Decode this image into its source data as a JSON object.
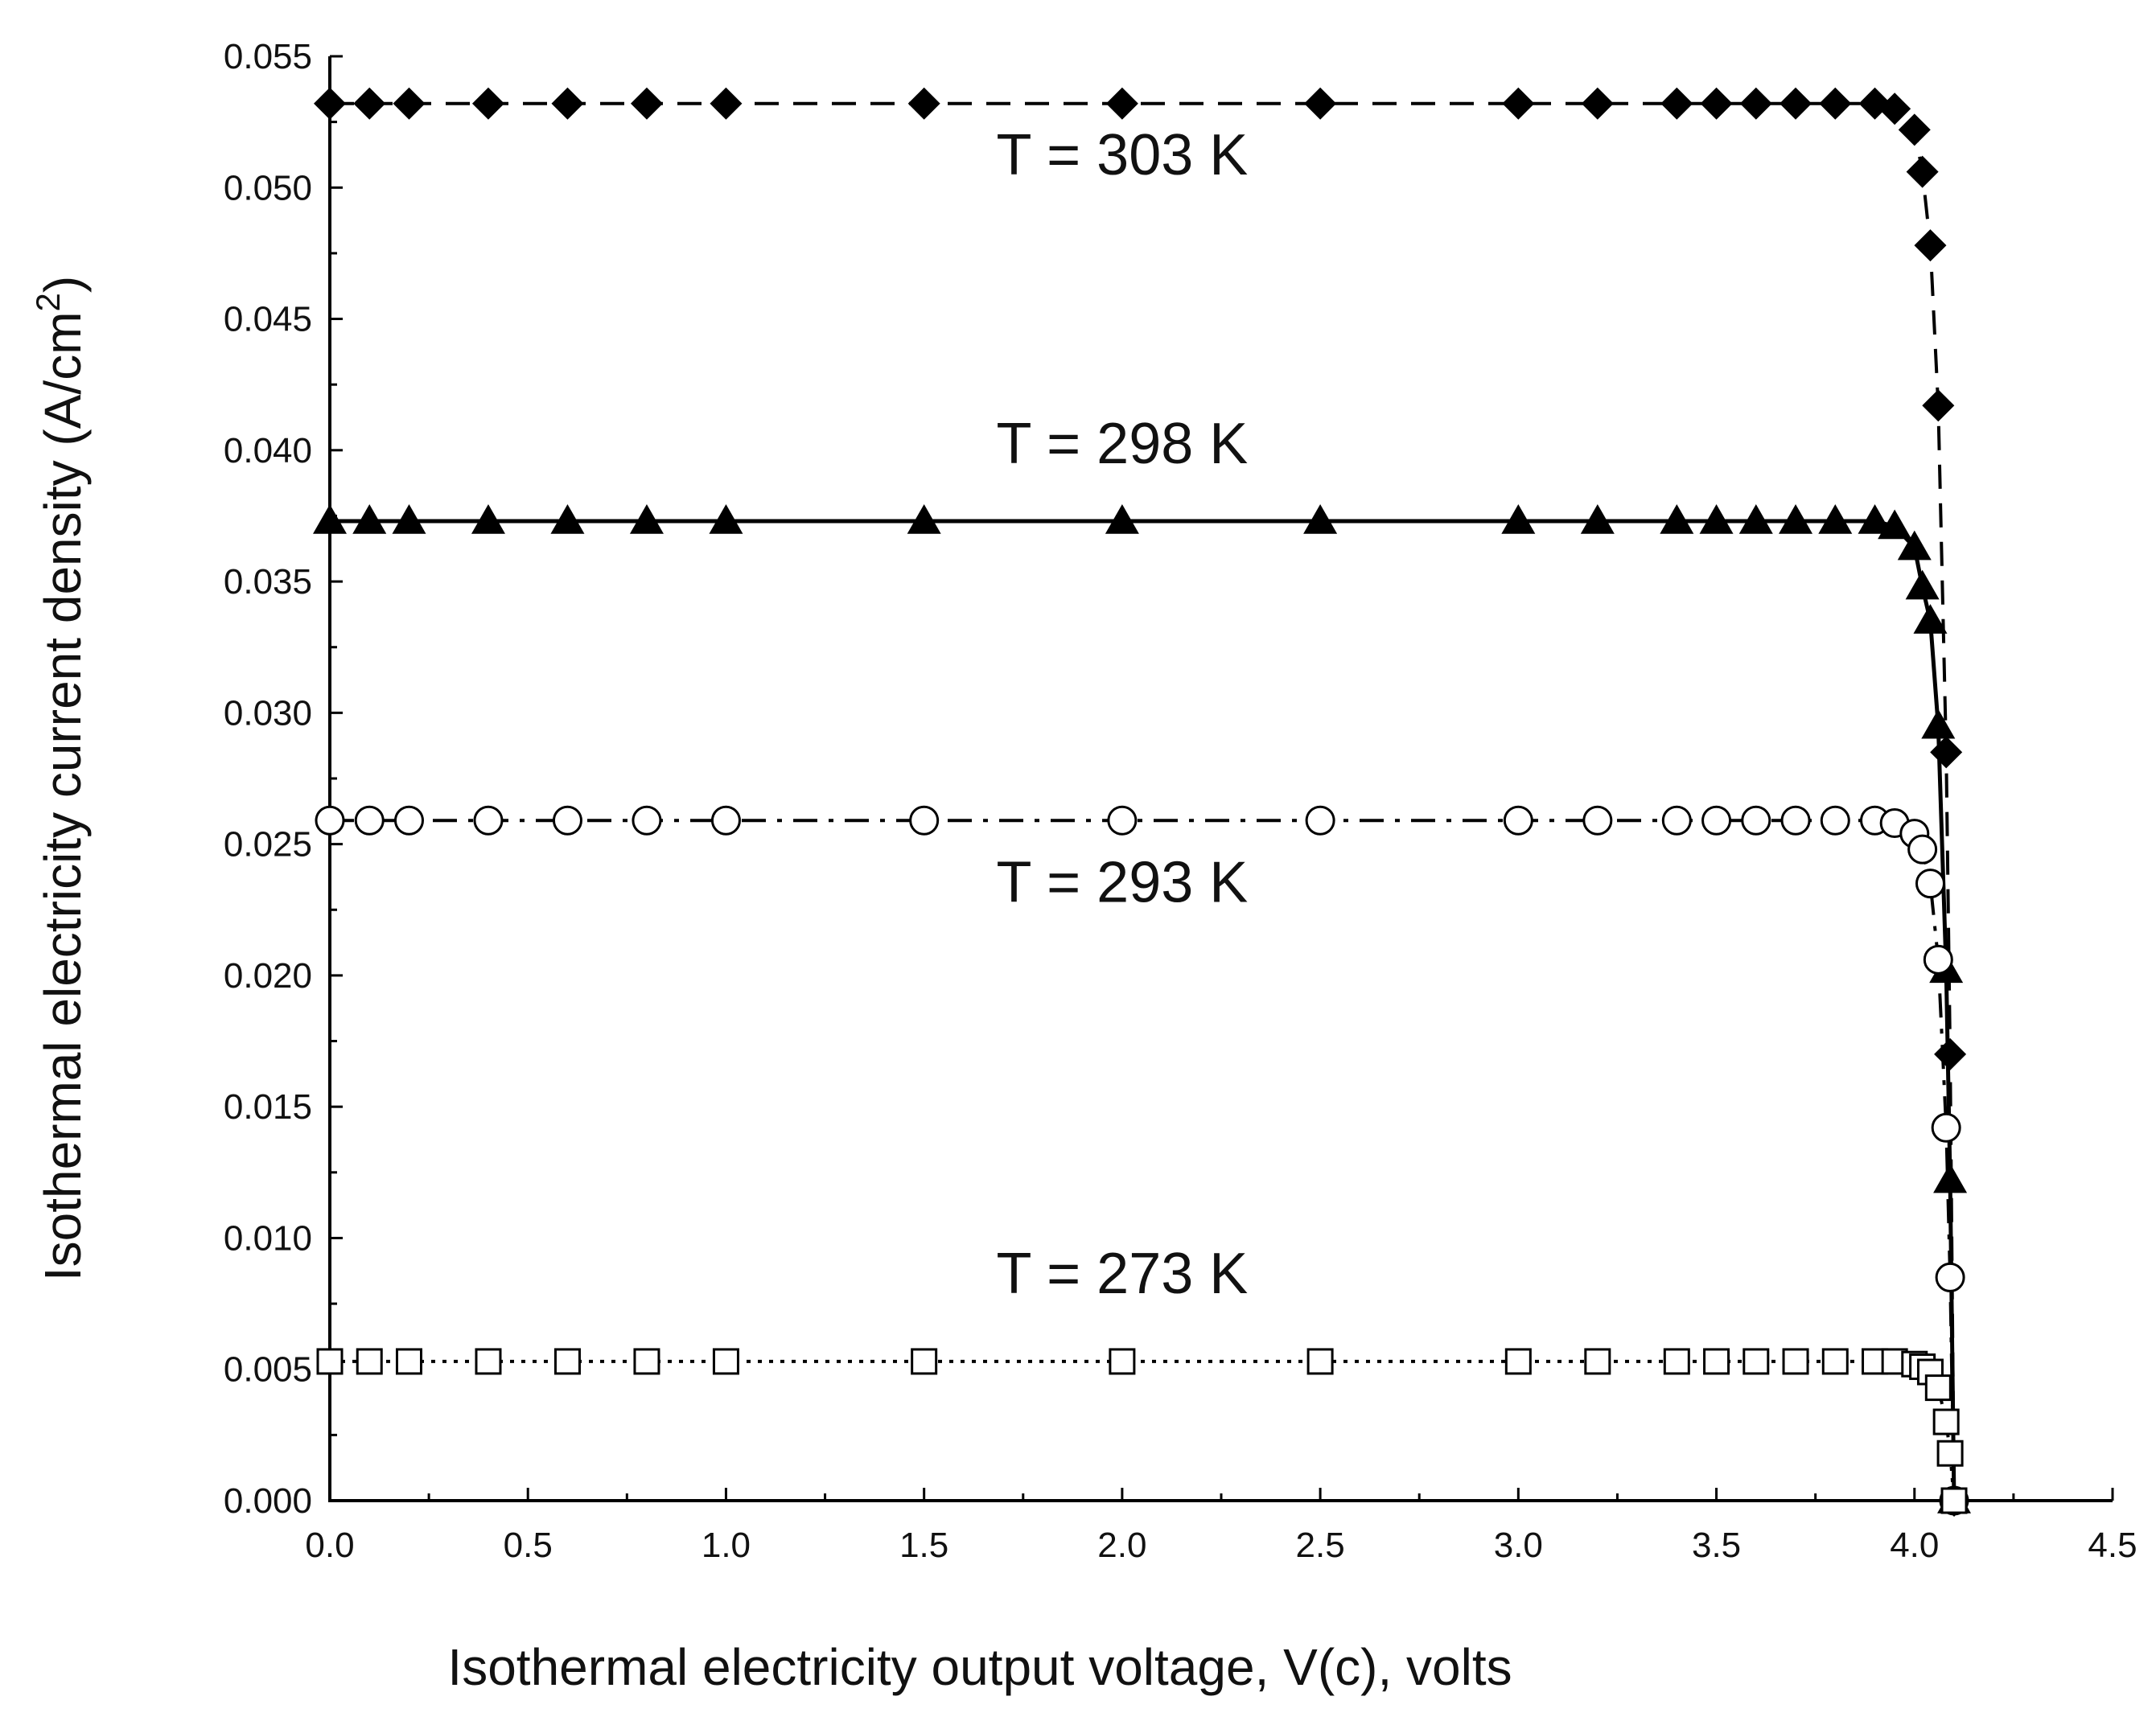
{
  "chart_data": {
    "type": "line",
    "xlabel": "Isothermal electricity output voltage, V(c), volts",
    "ylabel": "Isothermal electricity current density (A/cm",
    "ylabel_sup": "2",
    "ylabel_close": ")",
    "xlim": [
      0.0,
      4.5
    ],
    "ylim": [
      0.0,
      0.055
    ],
    "x_ticks": [
      "0.0",
      "0.5",
      "1.0",
      "1.5",
      "2.0",
      "2.5",
      "3.0",
      "3.5",
      "4.0",
      "4.5"
    ],
    "y_ticks": [
      "0.000",
      "0.005",
      "0.010",
      "0.015",
      "0.020",
      "0.025",
      "0.030",
      "0.035",
      "0.040",
      "0.045",
      "0.050",
      "0.055"
    ],
    "grid": false,
    "annotations": [
      {
        "text": "T = 303 K",
        "x": 2.0,
        "y": 0.0505
      },
      {
        "text": "T = 298 K",
        "x": 2.0,
        "y": 0.0395
      },
      {
        "text": "T = 293 K",
        "x": 2.0,
        "y": 0.0228
      },
      {
        "text": "T = 273 K",
        "x": 2.0,
        "y": 0.0079
      }
    ],
    "series": [
      {
        "marker": "diamond-filled",
        "line": "dashed",
        "x": [
          0.0,
          0.1,
          0.2,
          0.4,
          0.6,
          0.8,
          1.0,
          1.5,
          2.0,
          2.5,
          3.0,
          3.2,
          3.4,
          3.5,
          3.6,
          3.7,
          3.8,
          3.9,
          3.95,
          4.0,
          4.02,
          4.04,
          4.06,
          4.08,
          4.09,
          4.1
        ],
        "y": [
          0.0532,
          0.0532,
          0.0532,
          0.0532,
          0.0532,
          0.0532,
          0.0532,
          0.0532,
          0.0532,
          0.0532,
          0.0532,
          0.0532,
          0.0532,
          0.0532,
          0.0532,
          0.0532,
          0.0532,
          0.0532,
          0.053,
          0.0522,
          0.0506,
          0.0478,
          0.0417,
          0.0285,
          0.017,
          0.0
        ]
      },
      {
        "marker": "triangle-filled",
        "line": "solid",
        "x": [
          0.0,
          0.1,
          0.2,
          0.4,
          0.6,
          0.8,
          1.0,
          1.5,
          2.0,
          2.5,
          3.0,
          3.2,
          3.4,
          3.5,
          3.6,
          3.7,
          3.8,
          3.9,
          3.95,
          4.0,
          4.02,
          4.04,
          4.06,
          4.08,
          4.09,
          4.1
        ],
        "y": [
          0.0373,
          0.0373,
          0.0373,
          0.0373,
          0.0373,
          0.0373,
          0.0373,
          0.0373,
          0.0373,
          0.0373,
          0.0373,
          0.0373,
          0.0373,
          0.0373,
          0.0373,
          0.0373,
          0.0373,
          0.0373,
          0.0371,
          0.0363,
          0.0348,
          0.0335,
          0.0295,
          0.0202,
          0.0122,
          0.0
        ]
      },
      {
        "marker": "circle-open",
        "line": "dash-dot",
        "x": [
          0.0,
          0.1,
          0.2,
          0.4,
          0.6,
          0.8,
          1.0,
          1.5,
          2.0,
          2.5,
          3.0,
          3.2,
          3.4,
          3.5,
          3.6,
          3.7,
          3.8,
          3.9,
          3.95,
          4.0,
          4.02,
          4.04,
          4.06,
          4.08,
          4.09,
          4.1
        ],
        "y": [
          0.0259,
          0.0259,
          0.0259,
          0.0259,
          0.0259,
          0.0259,
          0.0259,
          0.0259,
          0.0259,
          0.0259,
          0.0259,
          0.0259,
          0.0259,
          0.0259,
          0.0259,
          0.0259,
          0.0259,
          0.0259,
          0.0258,
          0.0254,
          0.0248,
          0.0235,
          0.0206,
          0.0142,
          0.0085,
          0.0
        ]
      },
      {
        "marker": "square-open",
        "line": "dotted",
        "x": [
          0.0,
          0.1,
          0.2,
          0.4,
          0.6,
          0.8,
          1.0,
          1.5,
          2.0,
          2.5,
          3.0,
          3.2,
          3.4,
          3.5,
          3.6,
          3.7,
          3.8,
          3.9,
          3.95,
          4.0,
          4.02,
          4.04,
          4.06,
          4.08,
          4.09,
          4.1
        ],
        "y": [
          0.0053,
          0.0053,
          0.0053,
          0.0053,
          0.0053,
          0.0053,
          0.0053,
          0.0053,
          0.0053,
          0.0053,
          0.0053,
          0.0053,
          0.0053,
          0.0053,
          0.0053,
          0.0053,
          0.0053,
          0.0053,
          0.0053,
          0.0052,
          0.0051,
          0.0049,
          0.0043,
          0.003,
          0.0018,
          0.0
        ]
      }
    ]
  }
}
